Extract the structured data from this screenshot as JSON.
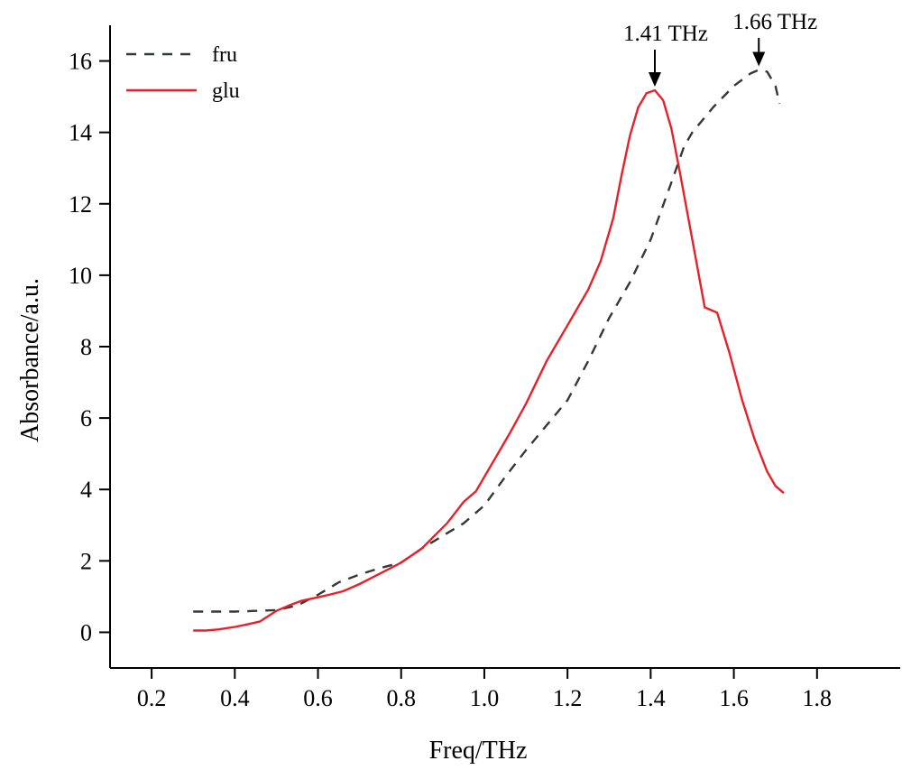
{
  "chart_data": {
    "type": "line",
    "title": "",
    "xlabel": "Freq/THz",
    "ylabel": "Absorbance/a.u.",
    "xlim": [
      0.1,
      2.0
    ],
    "ylim": [
      -1,
      17
    ],
    "x_ticks": [
      0.2,
      0.4,
      0.6,
      0.8,
      1.0,
      1.2,
      1.4,
      1.6,
      1.8
    ],
    "x_tick_labels": [
      "0.2",
      "0.4",
      "0.6",
      "0.8",
      "1.0",
      "1.2",
      "1.4",
      "1.6",
      "1.8"
    ],
    "y_ticks": [
      0,
      2,
      4,
      6,
      8,
      10,
      12,
      14,
      16
    ],
    "y_tick_labels": [
      "0",
      "2",
      "4",
      "6",
      "8",
      "10",
      "12",
      "14",
      "16"
    ],
    "grid": false,
    "legend_position": "top-left",
    "series": [
      {
        "name": "fru",
        "style": "dashed",
        "color": "#333a33",
        "x": [
          0.3,
          0.35,
          0.4,
          0.45,
          0.5,
          0.55,
          0.6,
          0.65,
          0.7,
          0.75,
          0.8,
          0.85,
          0.9,
          0.95,
          1.0,
          1.05,
          1.1,
          1.15,
          1.2,
          1.25,
          1.3,
          1.35,
          1.4,
          1.45,
          1.48,
          1.5,
          1.55,
          1.6,
          1.64,
          1.66,
          1.68,
          1.7,
          1.71
        ],
        "y": [
          0.58,
          0.58,
          0.58,
          0.6,
          0.62,
          0.75,
          1.05,
          1.4,
          1.62,
          1.8,
          1.95,
          2.35,
          2.7,
          3.05,
          3.55,
          4.35,
          5.1,
          5.8,
          6.5,
          7.6,
          8.8,
          9.8,
          11.0,
          12.6,
          13.6,
          14.0,
          14.7,
          15.3,
          15.65,
          15.75,
          15.7,
          15.3,
          14.8
        ]
      },
      {
        "name": "glu",
        "style": "solid",
        "color": "#e8202a",
        "x": [
          0.3,
          0.33,
          0.36,
          0.4,
          0.43,
          0.46,
          0.48,
          0.5,
          0.53,
          0.56,
          0.6,
          0.63,
          0.66,
          0.7,
          0.75,
          0.8,
          0.85,
          0.88,
          0.91,
          0.95,
          0.98,
          1.0,
          1.03,
          1.06,
          1.1,
          1.15,
          1.2,
          1.25,
          1.28,
          1.31,
          1.33,
          1.35,
          1.37,
          1.39,
          1.41,
          1.43,
          1.45,
          1.47,
          1.5,
          1.53,
          1.56,
          1.59,
          1.62,
          1.65,
          1.68,
          1.7,
          1.72
        ],
        "y": [
          0.05,
          0.05,
          0.08,
          0.15,
          0.22,
          0.3,
          0.45,
          0.6,
          0.75,
          0.88,
          0.98,
          1.06,
          1.15,
          1.35,
          1.65,
          1.95,
          2.35,
          2.7,
          3.05,
          3.65,
          3.95,
          4.35,
          4.95,
          5.55,
          6.4,
          7.6,
          8.6,
          9.6,
          10.4,
          11.6,
          12.8,
          13.9,
          14.7,
          15.1,
          15.18,
          14.9,
          14.1,
          12.9,
          11.0,
          9.1,
          8.95,
          7.8,
          6.5,
          5.4,
          4.5,
          4.1,
          3.9
        ]
      }
    ],
    "annotations": [
      {
        "text": "1.41 THz",
        "x": 1.41,
        "y": 15.18
      },
      {
        "text": "1.66 THz",
        "x": 1.66,
        "y": 15.75
      }
    ]
  }
}
